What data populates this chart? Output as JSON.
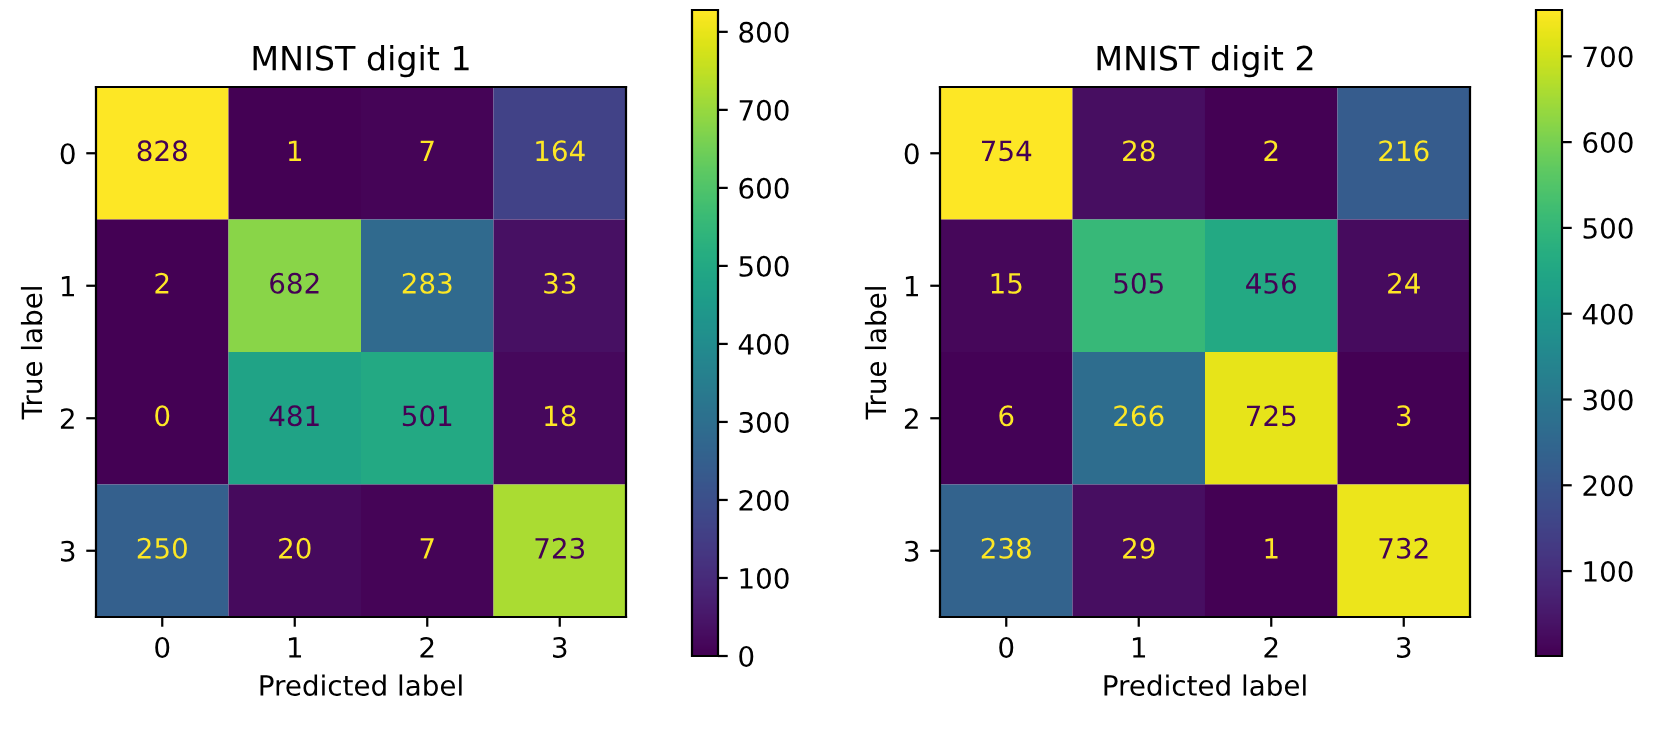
{
  "chart_data": [
    {
      "type": "heatmap",
      "title": "MNIST digit 1",
      "xlabel": "Predicted label",
      "ylabel": "True label",
      "categories": [
        "0",
        "1",
        "2",
        "3"
      ],
      "y_categories": [
        "0",
        "1",
        "2",
        "3"
      ],
      "cells": [
        [
          828,
          1,
          7,
          164
        ],
        [
          2,
          682,
          283,
          33
        ],
        [
          0,
          481,
          501,
          18
        ],
        [
          250,
          20,
          7,
          723
        ]
      ],
      "clim": [
        0,
        828
      ],
      "cticks": [
        0,
        100,
        200,
        300,
        400,
        500,
        600,
        700,
        800
      ],
      "data_labels": true
    },
    {
      "type": "heatmap",
      "title": "MNIST digit 2",
      "xlabel": "Predicted label",
      "ylabel": "True label",
      "categories": [
        "0",
        "1",
        "2",
        "3"
      ],
      "y_categories": [
        "0",
        "1",
        "2",
        "3"
      ],
      "cells": [
        [
          754,
          28,
          2,
          216
        ],
        [
          15,
          505,
          456,
          24
        ],
        [
          6,
          266,
          725,
          3
        ],
        [
          238,
          29,
          1,
          732
        ]
      ],
      "clim": [
        1,
        754
      ],
      "cticks": [
        100,
        200,
        300,
        400,
        500,
        600,
        700
      ],
      "data_labels": true
    }
  ]
}
